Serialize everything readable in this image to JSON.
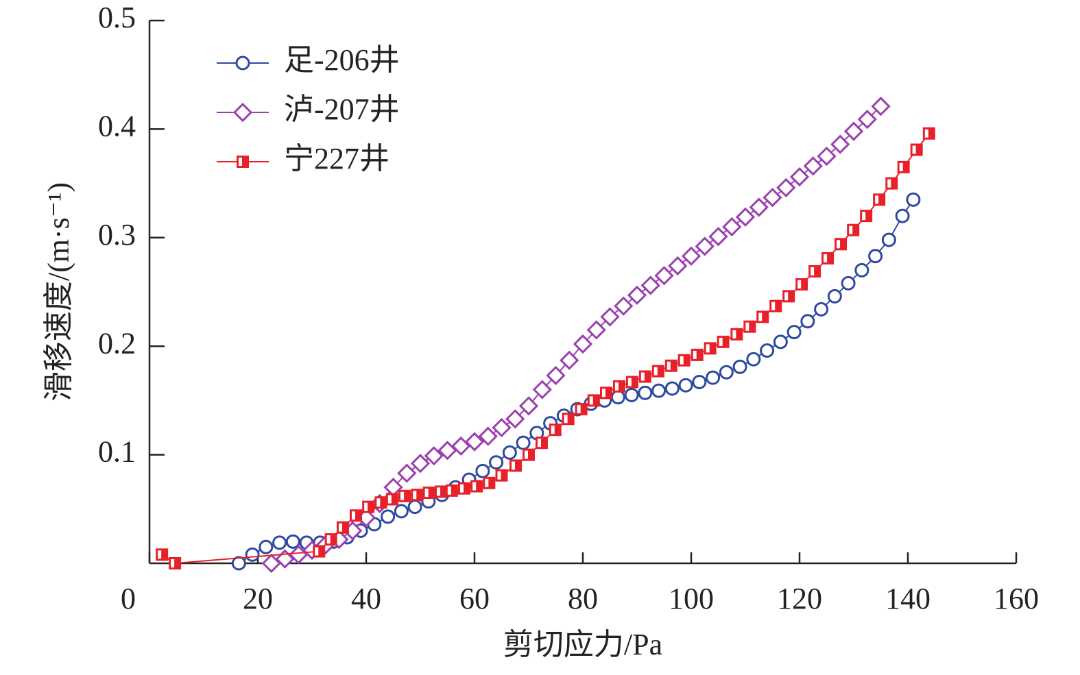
{
  "chart_data": {
    "type": "line",
    "x_label": "剪切应力/Pa",
    "y_label": "滑移速度/(m·s⁻¹)",
    "xlim": [
      0,
      160
    ],
    "xticks": [
      0,
      20,
      40,
      60,
      80,
      100,
      120,
      140,
      160
    ],
    "ylim": [
      0,
      0.5
    ],
    "yticks": [
      0.1,
      0.2,
      0.3,
      0.4,
      0.5
    ],
    "legend": "upper-left",
    "series": [
      {
        "name": "足-206井",
        "color": "#2e4a9e",
        "marker": "circle",
        "x": [
          16.5,
          19,
          21.5,
          24,
          26.5,
          29,
          31.5,
          34,
          36.5,
          39,
          41.5,
          44,
          46.5,
          49,
          51.5,
          54,
          56.5,
          59,
          61.5,
          64,
          66.5,
          69,
          71.5,
          74,
          76.5,
          79,
          81.5,
          84,
          86.5,
          89,
          91.5,
          94,
          96.5,
          99,
          101.5,
          104,
          106.5,
          109,
          111.5,
          114,
          116.5,
          119,
          121.5,
          124,
          126.5,
          129,
          131.5,
          134,
          136.5,
          139,
          141
        ],
        "values": [
          0,
          0.008,
          0.015,
          0.019,
          0.02,
          0.019,
          0.019,
          0.02,
          0.024,
          0.03,
          0.036,
          0.043,
          0.048,
          0.052,
          0.057,
          0.063,
          0.07,
          0.077,
          0.085,
          0.093,
          0.102,
          0.111,
          0.12,
          0.129,
          0.136,
          0.142,
          0.147,
          0.15,
          0.153,
          0.155,
          0.157,
          0.159,
          0.161,
          0.164,
          0.167,
          0.171,
          0.176,
          0.181,
          0.188,
          0.196,
          0.204,
          0.213,
          0.223,
          0.234,
          0.246,
          0.258,
          0.27,
          0.283,
          0.298,
          0.32,
          0.335
        ]
      },
      {
        "name": "泸-207井",
        "color": "#9b3fb0",
        "marker": "diamond",
        "x": [
          22.5,
          25,
          27.5,
          30,
          32.5,
          35,
          37.5,
          40,
          42.5,
          45,
          47.5,
          50,
          52.5,
          55,
          57.5,
          60,
          62.5,
          65,
          67.5,
          70,
          72.5,
          75,
          77.5,
          80,
          82.5,
          85,
          87.5,
          90,
          92.5,
          95,
          97.5,
          100,
          102.5,
          105,
          107.5,
          110,
          112.5,
          115,
          117.5,
          120,
          122.5,
          125,
          127.5,
          130,
          132.5,
          135
        ],
        "values": [
          0,
          0.004,
          0.008,
          0.012,
          0.017,
          0.022,
          0.03,
          0.042,
          0.055,
          0.07,
          0.083,
          0.092,
          0.099,
          0.104,
          0.108,
          0.112,
          0.117,
          0.125,
          0.133,
          0.145,
          0.16,
          0.173,
          0.187,
          0.202,
          0.215,
          0.227,
          0.237,
          0.247,
          0.256,
          0.265,
          0.274,
          0.283,
          0.292,
          0.301,
          0.31,
          0.319,
          0.328,
          0.337,
          0.346,
          0.356,
          0.366,
          0.375,
          0.386,
          0.398,
          0.409,
          0.421
        ]
      },
      {
        "name": "宁227井",
        "color": "#e8202a",
        "marker": "square",
        "x": [
          2.3,
          4.7,
          31.3,
          33.5,
          35.7,
          38.1,
          40.4,
          42.7,
          44.8,
          47.1,
          49.4,
          51.6,
          53.8,
          55.8,
          58.1,
          60.4,
          62.7,
          65,
          67.6,
          70,
          72.4,
          74.9,
          77.3,
          79.7,
          82,
          84.3,
          86.7,
          89.1,
          91.5,
          93.9,
          96.3,
          98.7,
          101.1,
          103.5,
          105.9,
          108.4,
          110.8,
          113.2,
          115.6,
          118,
          120.4,
          122.8,
          125.2,
          127.6,
          129.9,
          132.3,
          134.7,
          137,
          139.2,
          141.6,
          143.9
        ],
        "values": [
          0.008,
          0,
          0.011,
          0.022,
          0.033,
          0.044,
          0.052,
          0.056,
          0.059,
          0.062,
          0.063,
          0.065,
          0.066,
          0.067,
          0.069,
          0.071,
          0.074,
          0.081,
          0.09,
          0.1,
          0.111,
          0.123,
          0.133,
          0.142,
          0.15,
          0.157,
          0.163,
          0.167,
          0.172,
          0.177,
          0.182,
          0.187,
          0.192,
          0.198,
          0.204,
          0.211,
          0.218,
          0.227,
          0.237,
          0.246,
          0.257,
          0.269,
          0.281,
          0.294,
          0.307,
          0.32,
          0.335,
          0.35,
          0.365,
          0.381,
          0.396
        ]
      }
    ]
  }
}
